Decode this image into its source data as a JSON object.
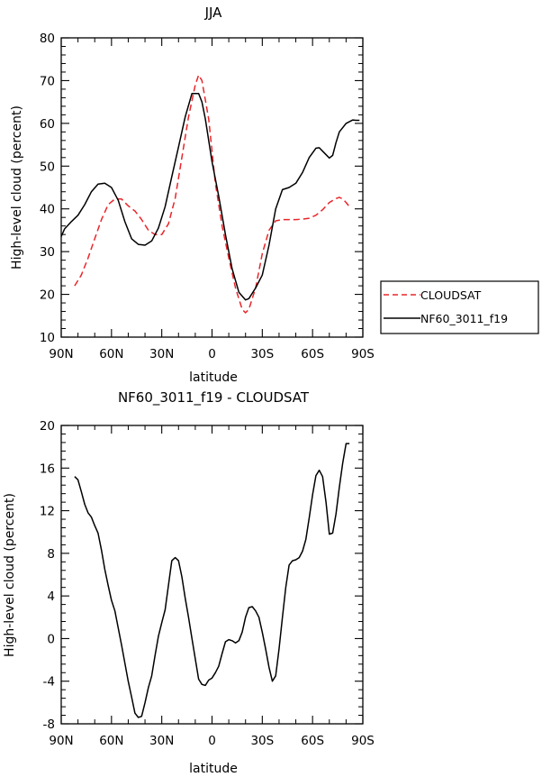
{
  "chart_data": [
    {
      "type": "line",
      "title": "JJA",
      "xlabel": "latitude",
      "ylabel": "High-level cloud (percent)",
      "x_ticks": [
        90,
        60,
        30,
        0,
        -30,
        -60,
        -90
      ],
      "x_tick_labels": [
        "90N",
        "60N",
        "30N",
        "0",
        "30S",
        "60S",
        "90S"
      ],
      "xlim": [
        90,
        -90
      ],
      "ylim": [
        10,
        80
      ],
      "y_ticks": [
        10,
        20,
        30,
        40,
        50,
        60,
        70,
        80
      ],
      "y_tick_labels": [
        "10",
        "20",
        "30",
        "40",
        "50",
        "60",
        "70",
        "80"
      ],
      "grid": false,
      "legend_position": "right",
      "series": [
        {
          "name": "CLOUDSAT",
          "color": "#e8262b",
          "dash": "dashed",
          "x": [
            82,
            78,
            74,
            70,
            66,
            62,
            58,
            54,
            50,
            46,
            42,
            38,
            34,
            30,
            26,
            22,
            18,
            14,
            10,
            8,
            6,
            2,
            -2,
            -6,
            -10,
            -14,
            -18,
            -20,
            -22,
            -26,
            -30,
            -34,
            -38,
            -42,
            -46,
            -50,
            -54,
            -58,
            -62,
            -66,
            -70,
            -74,
            -76,
            -78,
            -80,
            -82
          ],
          "y": [
            22,
            24.5,
            28.5,
            33,
            37.5,
            41,
            42.3,
            42.3,
            40.7,
            39.5,
            37.5,
            35,
            34,
            34,
            36.5,
            42.5,
            52,
            61.5,
            69,
            71.3,
            70,
            61,
            46,
            36,
            28.5,
            21.5,
            16.5,
            15.7,
            16.5,
            21.5,
            29.5,
            35,
            37.2,
            37.5,
            37.5,
            37.5,
            37.6,
            37.8,
            38.5,
            39.8,
            41.5,
            42.4,
            42.7,
            42.3,
            41.5,
            40.5
          ]
        },
        {
          "name": "NF60_3011_f19",
          "color": "#000000",
          "dash": "solid",
          "x": [
            90,
            88,
            84,
            80,
            76,
            72,
            68,
            64,
            60,
            56,
            52,
            48,
            44,
            40,
            36,
            32,
            28,
            24,
            20,
            16,
            12,
            8,
            6,
            4,
            0,
            -4,
            -8,
            -12,
            -16,
            -20,
            -22,
            -26,
            -30,
            -34,
            -38,
            -42,
            -46,
            -50,
            -54,
            -58,
            -62,
            -64,
            -66,
            -70,
            -72,
            -74,
            -76,
            -80,
            -84,
            -86,
            -88
          ],
          "y": [
            33.5,
            35.3,
            37,
            38.5,
            41,
            44,
            45.8,
            46,
            45,
            42,
            37,
            33,
            31.7,
            31.5,
            32.5,
            35.5,
            40.5,
            47.5,
            54.5,
            61.5,
            67,
            67,
            65,
            61,
            51,
            43,
            34,
            26,
            20.5,
            18.7,
            19,
            21.5,
            24.5,
            31.5,
            40,
            44.5,
            45,
            46,
            48.5,
            52,
            54.2,
            54.3,
            53.5,
            51.9,
            52.5,
            55.5,
            58,
            60,
            60.8,
            60.7,
            60.7
          ]
        }
      ]
    },
    {
      "type": "line",
      "title": "NF60_3011_f19 - CLOUDSAT",
      "xlabel": "latitude",
      "ylabel": "High-level cloud (percent)",
      "x_ticks": [
        90,
        60,
        30,
        0,
        -30,
        -60,
        -90
      ],
      "x_tick_labels": [
        "90N",
        "60N",
        "30N",
        "0",
        "30S",
        "60S",
        "90S"
      ],
      "xlim": [
        90,
        -90
      ],
      "ylim": [
        -8,
        20
      ],
      "y_ticks": [
        -8,
        -4,
        0,
        4,
        8,
        12,
        16,
        20
      ],
      "y_tick_labels": [
        "-8",
        "-4",
        "0",
        "4",
        "8",
        "12",
        "16",
        "20"
      ],
      "grid": false,
      "series": [
        {
          "color": "#000000",
          "dash": "solid",
          "x": [
            82,
            80,
            78,
            76,
            74,
            72,
            70,
            68,
            66,
            64,
            62,
            60,
            58,
            56,
            54,
            52,
            50,
            48,
            46,
            44,
            42,
            40,
            38,
            36,
            34,
            32,
            30,
            28,
            26,
            24,
            22,
            20,
            18,
            16,
            14,
            12,
            10,
            8,
            6,
            4,
            2,
            0,
            -2,
            -4,
            -6,
            -8,
            -10,
            -12,
            -14,
            -16,
            -18,
            -20,
            -22,
            -24,
            -26,
            -28,
            -30,
            -32,
            -34,
            -36,
            -38,
            -40,
            -42,
            -44,
            -46,
            -48,
            -50,
            -52,
            -54,
            -56,
            -58,
            -60,
            -62,
            -64,
            -66,
            -68,
            -70,
            -72,
            -74,
            -76,
            -78,
            -80,
            -82
          ],
          "y": [
            15.2,
            14.9,
            13.8,
            12.6,
            11.8,
            11.4,
            10.6,
            9.9,
            8.3,
            6.5,
            5,
            3.6,
            2.6,
            1,
            -0.6,
            -2.3,
            -4,
            -5.5,
            -7,
            -7.4,
            -7.3,
            -6,
            -4.6,
            -3.5,
            -1.6,
            0.2,
            1.5,
            2.7,
            5,
            7.3,
            7.6,
            7.3,
            5.8,
            3.8,
            2,
            0,
            -1.9,
            -3.8,
            -4.3,
            -4.4,
            -3.9,
            -3.7,
            -3.2,
            -2.6,
            -1.4,
            -0.3,
            -0.1,
            -0.2,
            -0.4,
            -0.2,
            0.6,
            2,
            2.9,
            3,
            2.6,
            2,
            0.6,
            -1,
            -2.7,
            -4,
            -3.5,
            -1,
            2,
            4.8,
            6.9,
            7.3,
            7.4,
            7.6,
            8.2,
            9.3,
            11.3,
            13.5,
            15.3,
            15.8,
            15.2,
            12.8,
            9.8,
            9.9,
            11.7,
            14.2,
            16.5,
            18.3,
            18.3
          ]
        }
      ]
    }
  ],
  "legend": {
    "items": [
      {
        "label": "CLOUDSAT",
        "color": "#e8262b",
        "dash": "dashed"
      },
      {
        "label": "NF60_3011_f19",
        "color": "#000000",
        "dash": "solid"
      }
    ]
  }
}
